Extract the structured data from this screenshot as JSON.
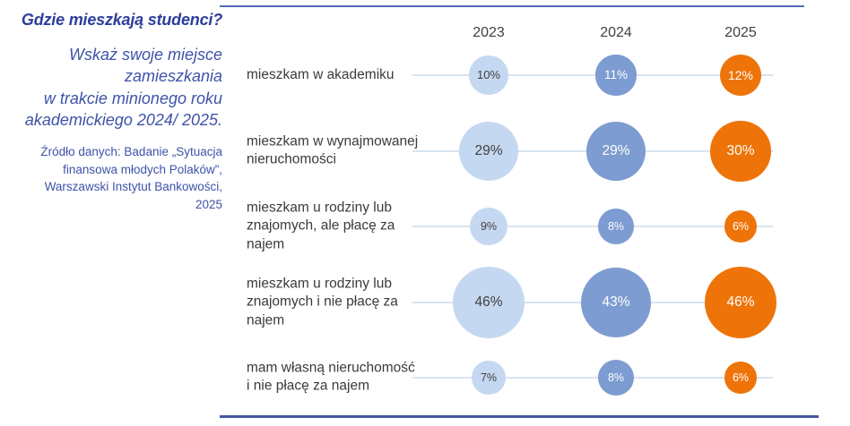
{
  "sidebar": {
    "title": "Gdzie mieszkają studenci?",
    "subtitle": "Wskaż swoje miejsce\nzamieszkania\nw trakcie minionego roku\nakademickiego 2024/ 2025.",
    "source": "Źródło danych: Badanie „Sytuacja\nfinansowa młodych Polaków”,\nWarszawski Instytut Bankowości,\n2025"
  },
  "chart_data": {
    "type": "bubble",
    "title": "Gdzie mieszkają studenci?",
    "columns": [
      "2023",
      "2024",
      "2025"
    ],
    "categories": [
      "mieszkam w akademiku",
      "mieszkam w wynajmowanej\nnieruchomości",
      "mieszkam u rodziny lub\nznajomych, ale płacę za\nnajem",
      "mieszkam u rodziny lub\nznajomych i nie płacę za\nnajem",
      "mam własną nieruchomość\ni nie płacę za najem"
    ],
    "series": [
      {
        "name": "2023",
        "color": "#c5d8f1",
        "label_color": "#404040",
        "values": [
          10,
          29,
          9,
          46,
          7
        ]
      },
      {
        "name": "2024",
        "color": "#7d9cd1",
        "label_color": "#ffffff",
        "values": [
          11,
          29,
          8,
          43,
          8
        ]
      },
      {
        "name": "2025",
        "color": "#ee7409",
        "label_color": "#ffffff",
        "values": [
          12,
          30,
          6,
          46,
          6
        ]
      }
    ],
    "value_suffix": "%",
    "layout": {
      "grid": false,
      "legend": "column-headers-top",
      "top_border_color": "#4f6cb3",
      "bottom_border_color": "#44569e",
      "connector_color": "#d9e3f2"
    }
  }
}
